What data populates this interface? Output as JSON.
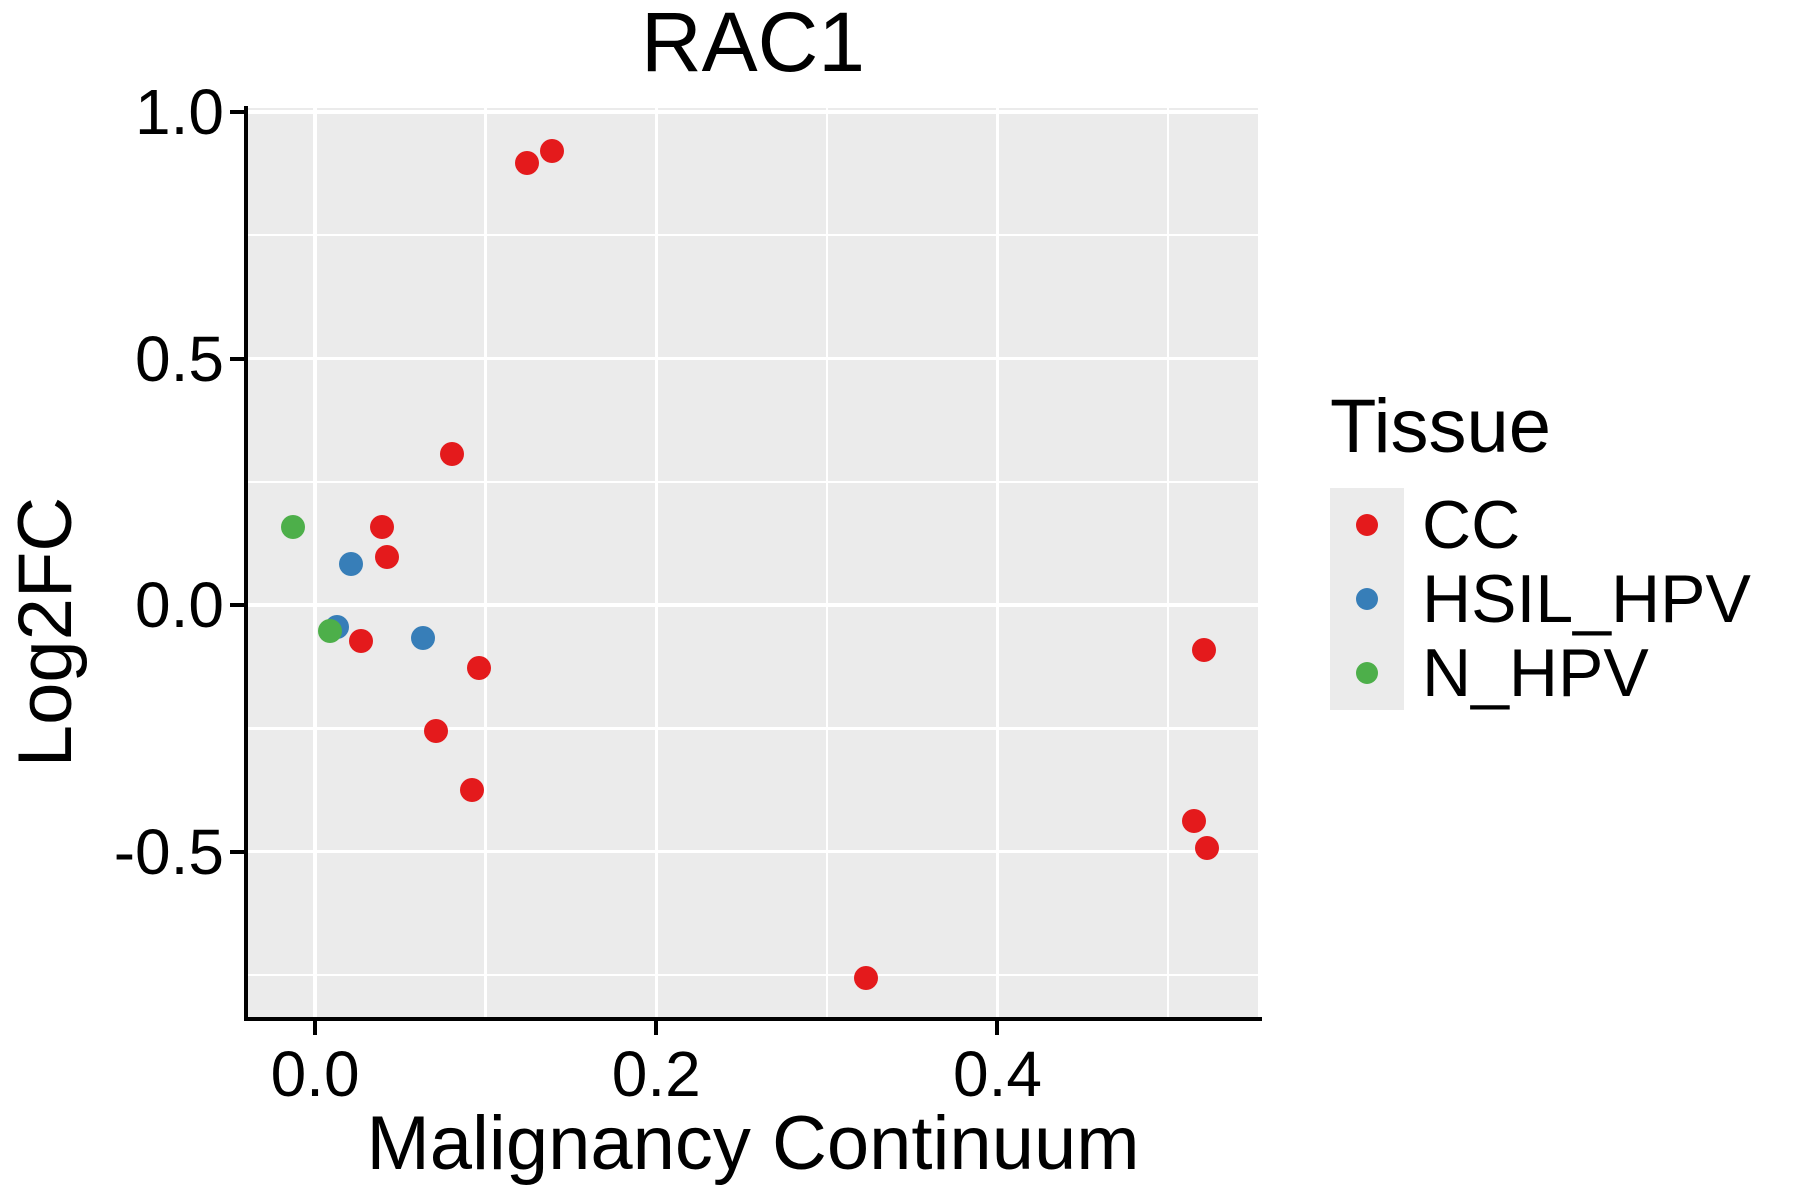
{
  "title": "RAC1",
  "axes": {
    "x": {
      "label": "Malignancy Continuum",
      "tick_values": [
        0.0,
        0.2,
        0.4
      ],
      "tick_labels": [
        "0.0",
        "0.2",
        "0.4"
      ],
      "minor_ticks": [
        0.1,
        0.3,
        0.5
      ],
      "range": [
        -0.0393,
        0.5527
      ]
    },
    "y": {
      "label": "Log2FC",
      "tick_values": [
        1.0,
        0.5,
        0.0,
        -0.5
      ],
      "tick_labels": [
        "1.0",
        "0.5",
        "0.0",
        "-0.5"
      ],
      "minor_ticks": [
        0.75,
        0.25,
        -0.25,
        -0.75
      ],
      "range": [
        -0.8397,
        1.0081
      ]
    }
  },
  "legend": {
    "title": "Tissue",
    "items": [
      {
        "label": "CC",
        "color": "#e41a1c"
      },
      {
        "label": "HSIL_HPV",
        "color": "#377eb8"
      },
      {
        "label": "N_HPV",
        "color": "#4daf4a"
      }
    ]
  },
  "colors": {
    "panel_background": "#ebebeb",
    "grid": "#ffffff",
    "axis": "#000000",
    "cc": "#e41a1c",
    "hsil_hpv": "#377eb8",
    "n_hpv": "#4daf4a"
  },
  "chart_data": {
    "type": "scatter",
    "title": "RAC1",
    "xlabel": "Malignancy Continuum",
    "ylabel": "Log2FC",
    "xlim": [
      -0.0393,
      0.5527
    ],
    "ylim": [
      -0.8397,
      1.0081
    ],
    "grid": true,
    "legend_position": "right",
    "series": [
      {
        "name": "CC",
        "color": "#e41a1c",
        "points": [
          [
            0.124,
            0.897
          ],
          [
            0.139,
            0.921
          ],
          [
            0.08,
            0.306
          ],
          [
            0.039,
            0.158
          ],
          [
            0.042,
            0.097
          ],
          [
            0.027,
            -0.073
          ],
          [
            0.096,
            -0.128
          ],
          [
            0.071,
            -0.256
          ],
          [
            0.092,
            -0.375
          ],
          [
            0.323,
            -0.757
          ],
          [
            0.521,
            -0.091
          ],
          [
            0.515,
            -0.438
          ],
          [
            0.523,
            -0.493
          ]
        ]
      },
      {
        "name": "HSIL_HPV",
        "color": "#377eb8",
        "points": [
          [
            0.021,
            0.083
          ],
          [
            0.013,
            -0.045
          ],
          [
            0.063,
            -0.067
          ]
        ]
      },
      {
        "name": "N_HPV",
        "color": "#4daf4a",
        "points": [
          [
            -0.013,
            0.158
          ],
          [
            0.009,
            -0.053
          ]
        ]
      }
    ]
  }
}
